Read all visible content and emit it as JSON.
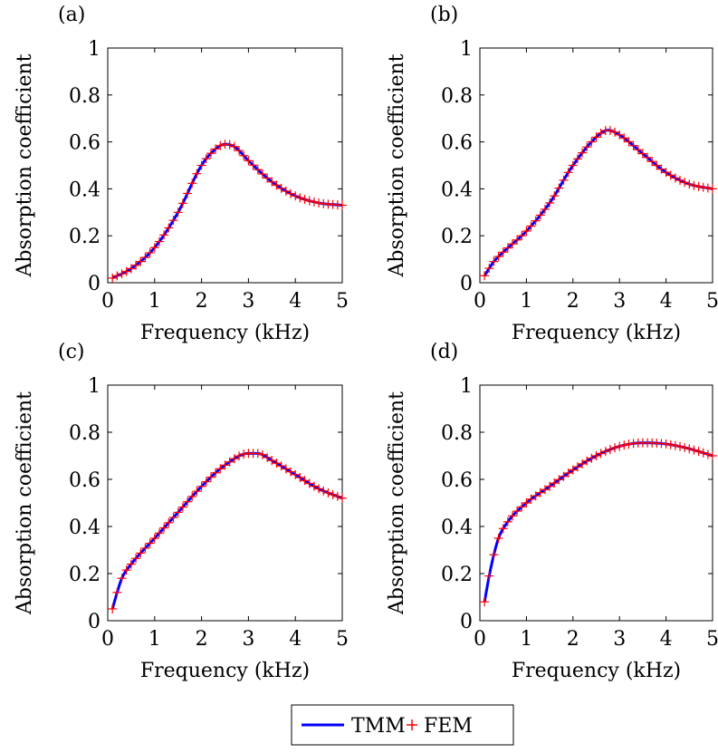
{
  "legend": {
    "placement": "bottom-center",
    "entries": [
      {
        "name": "TMM",
        "color": "#0000ff",
        "marker": "line"
      },
      {
        "name": "FEM",
        "color": "#ff0000",
        "marker": "plus"
      }
    ]
  },
  "chart_data": [
    {
      "type": "line",
      "panel_label": "(a)",
      "xlabel": "Frequency (kHz)",
      "ylabel": "Absorption coefficient",
      "xlim": [
        0,
        5
      ],
      "ylim": [
        0,
        1
      ],
      "xticks": [
        "0",
        "1",
        "2",
        "3",
        "4",
        "5"
      ],
      "yticks": [
        "0",
        "0.2",
        "0.4",
        "0.6",
        "0.8",
        "1"
      ],
      "grid": false,
      "series": [
        {
          "name": "TMM",
          "color": "#0000ff",
          "style": "line",
          "x": [
            0.1,
            0.5,
            1.0,
            1.5,
            2.0,
            2.3,
            2.5,
            2.7,
            3.0,
            3.5,
            4.0,
            4.5,
            5.0
          ],
          "y": [
            0.02,
            0.06,
            0.15,
            0.3,
            0.5,
            0.57,
            0.59,
            0.58,
            0.52,
            0.43,
            0.37,
            0.34,
            0.33
          ]
        },
        {
          "name": "FEM",
          "color": "#ff0000",
          "style": "plus",
          "x": [
            0.1,
            0.5,
            1.0,
            1.5,
            2.0,
            2.3,
            2.5,
            2.7,
            3.0,
            3.5,
            4.0,
            4.5,
            5.0
          ],
          "y": [
            0.02,
            0.06,
            0.15,
            0.3,
            0.5,
            0.57,
            0.59,
            0.58,
            0.52,
            0.43,
            0.37,
            0.34,
            0.33
          ]
        }
      ]
    },
    {
      "type": "line",
      "panel_label": "(b)",
      "xlabel": "Frequency (kHz)",
      "ylabel": "Absorption coefficient",
      "xlim": [
        0,
        5
      ],
      "ylim": [
        0,
        1
      ],
      "xticks": [
        "0",
        "1",
        "2",
        "3",
        "4",
        "5"
      ],
      "yticks": [
        "0",
        "0.2",
        "0.4",
        "0.6",
        "0.8",
        "1"
      ],
      "grid": false,
      "series": [
        {
          "name": "TMM",
          "color": "#0000ff",
          "style": "line",
          "x": [
            0.1,
            0.3,
            0.5,
            1.0,
            1.5,
            2.0,
            2.5,
            2.75,
            3.0,
            3.5,
            4.0,
            4.5,
            5.0
          ],
          "y": [
            0.03,
            0.09,
            0.13,
            0.22,
            0.34,
            0.5,
            0.62,
            0.65,
            0.63,
            0.55,
            0.47,
            0.42,
            0.4
          ]
        },
        {
          "name": "FEM",
          "color": "#ff0000",
          "style": "plus",
          "x": [
            0.1,
            0.3,
            0.5,
            1.0,
            1.5,
            2.0,
            2.5,
            2.75,
            3.0,
            3.5,
            4.0,
            4.5,
            5.0
          ],
          "y": [
            0.03,
            0.09,
            0.13,
            0.22,
            0.34,
            0.5,
            0.62,
            0.65,
            0.63,
            0.55,
            0.47,
            0.42,
            0.4
          ]
        }
      ]
    },
    {
      "type": "line",
      "panel_label": "(c)",
      "xlabel": "Frequency (kHz)",
      "ylabel": "Absorption coefficient",
      "xlim": [
        0,
        5
      ],
      "ylim": [
        0,
        1
      ],
      "xticks": [
        "0",
        "1",
        "2",
        "3",
        "4",
        "5"
      ],
      "yticks": [
        "0",
        "0.2",
        "0.4",
        "0.6",
        "0.8",
        "1"
      ],
      "grid": false,
      "series": [
        {
          "name": "TMM",
          "color": "#0000ff",
          "style": "line",
          "x": [
            0.1,
            0.2,
            0.3,
            0.5,
            1.0,
            1.5,
            2.0,
            2.5,
            3.0,
            3.2,
            3.5,
            4.0,
            4.5,
            5.0
          ],
          "y": [
            0.05,
            0.12,
            0.18,
            0.24,
            0.35,
            0.46,
            0.57,
            0.66,
            0.71,
            0.71,
            0.68,
            0.62,
            0.56,
            0.52
          ]
        },
        {
          "name": "FEM",
          "color": "#ff0000",
          "style": "plus",
          "x": [
            0.1,
            0.2,
            0.3,
            0.5,
            1.0,
            1.5,
            2.0,
            2.5,
            3.0,
            3.2,
            3.5,
            4.0,
            4.5,
            5.0
          ],
          "y": [
            0.05,
            0.12,
            0.18,
            0.24,
            0.35,
            0.46,
            0.57,
            0.66,
            0.71,
            0.71,
            0.68,
            0.62,
            0.56,
            0.52
          ]
        }
      ]
    },
    {
      "type": "line",
      "panel_label": "(d)",
      "xlabel": "Frequency (kHz)",
      "ylabel": "Absorption coefficient",
      "xlim": [
        0,
        5
      ],
      "ylim": [
        0,
        1
      ],
      "xticks": [
        "0",
        "1",
        "2",
        "3",
        "4",
        "5"
      ],
      "yticks": [
        "0",
        "0.2",
        "0.4",
        "0.6",
        "0.8",
        "1"
      ],
      "grid": false,
      "series": [
        {
          "name": "TMM",
          "color": "#0000ff",
          "style": "line",
          "x": [
            0.1,
            0.2,
            0.3,
            0.4,
            0.6,
            1.0,
            1.5,
            2.0,
            2.5,
            3.0,
            3.5,
            4.0,
            4.5,
            5.0
          ],
          "y": [
            0.08,
            0.19,
            0.28,
            0.35,
            0.42,
            0.5,
            0.57,
            0.64,
            0.7,
            0.74,
            0.755,
            0.75,
            0.73,
            0.7
          ]
        },
        {
          "name": "FEM",
          "color": "#ff0000",
          "style": "plus",
          "x": [
            0.1,
            0.2,
            0.3,
            0.4,
            0.6,
            1.0,
            1.5,
            2.0,
            2.5,
            3.0,
            3.5,
            4.0,
            4.5,
            5.0
          ],
          "y": [
            0.08,
            0.19,
            0.28,
            0.35,
            0.42,
            0.5,
            0.57,
            0.64,
            0.7,
            0.74,
            0.755,
            0.75,
            0.73,
            0.7
          ]
        }
      ]
    }
  ]
}
